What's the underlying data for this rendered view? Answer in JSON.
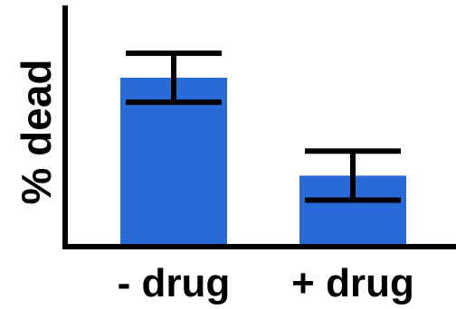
{
  "chart_data": {
    "type": "bar",
    "categories": [
      "- drug",
      "+ drug"
    ],
    "values": [
      69,
      29
    ],
    "error_low": [
      59,
      19
    ],
    "error_high": [
      79,
      39
    ],
    "ylabel": "% dead",
    "xlabel": "",
    "title": "",
    "ylim": [
      0,
      100
    ],
    "grid": false,
    "bar_color": "#2a6ad8",
    "axis_color": "#000000"
  }
}
